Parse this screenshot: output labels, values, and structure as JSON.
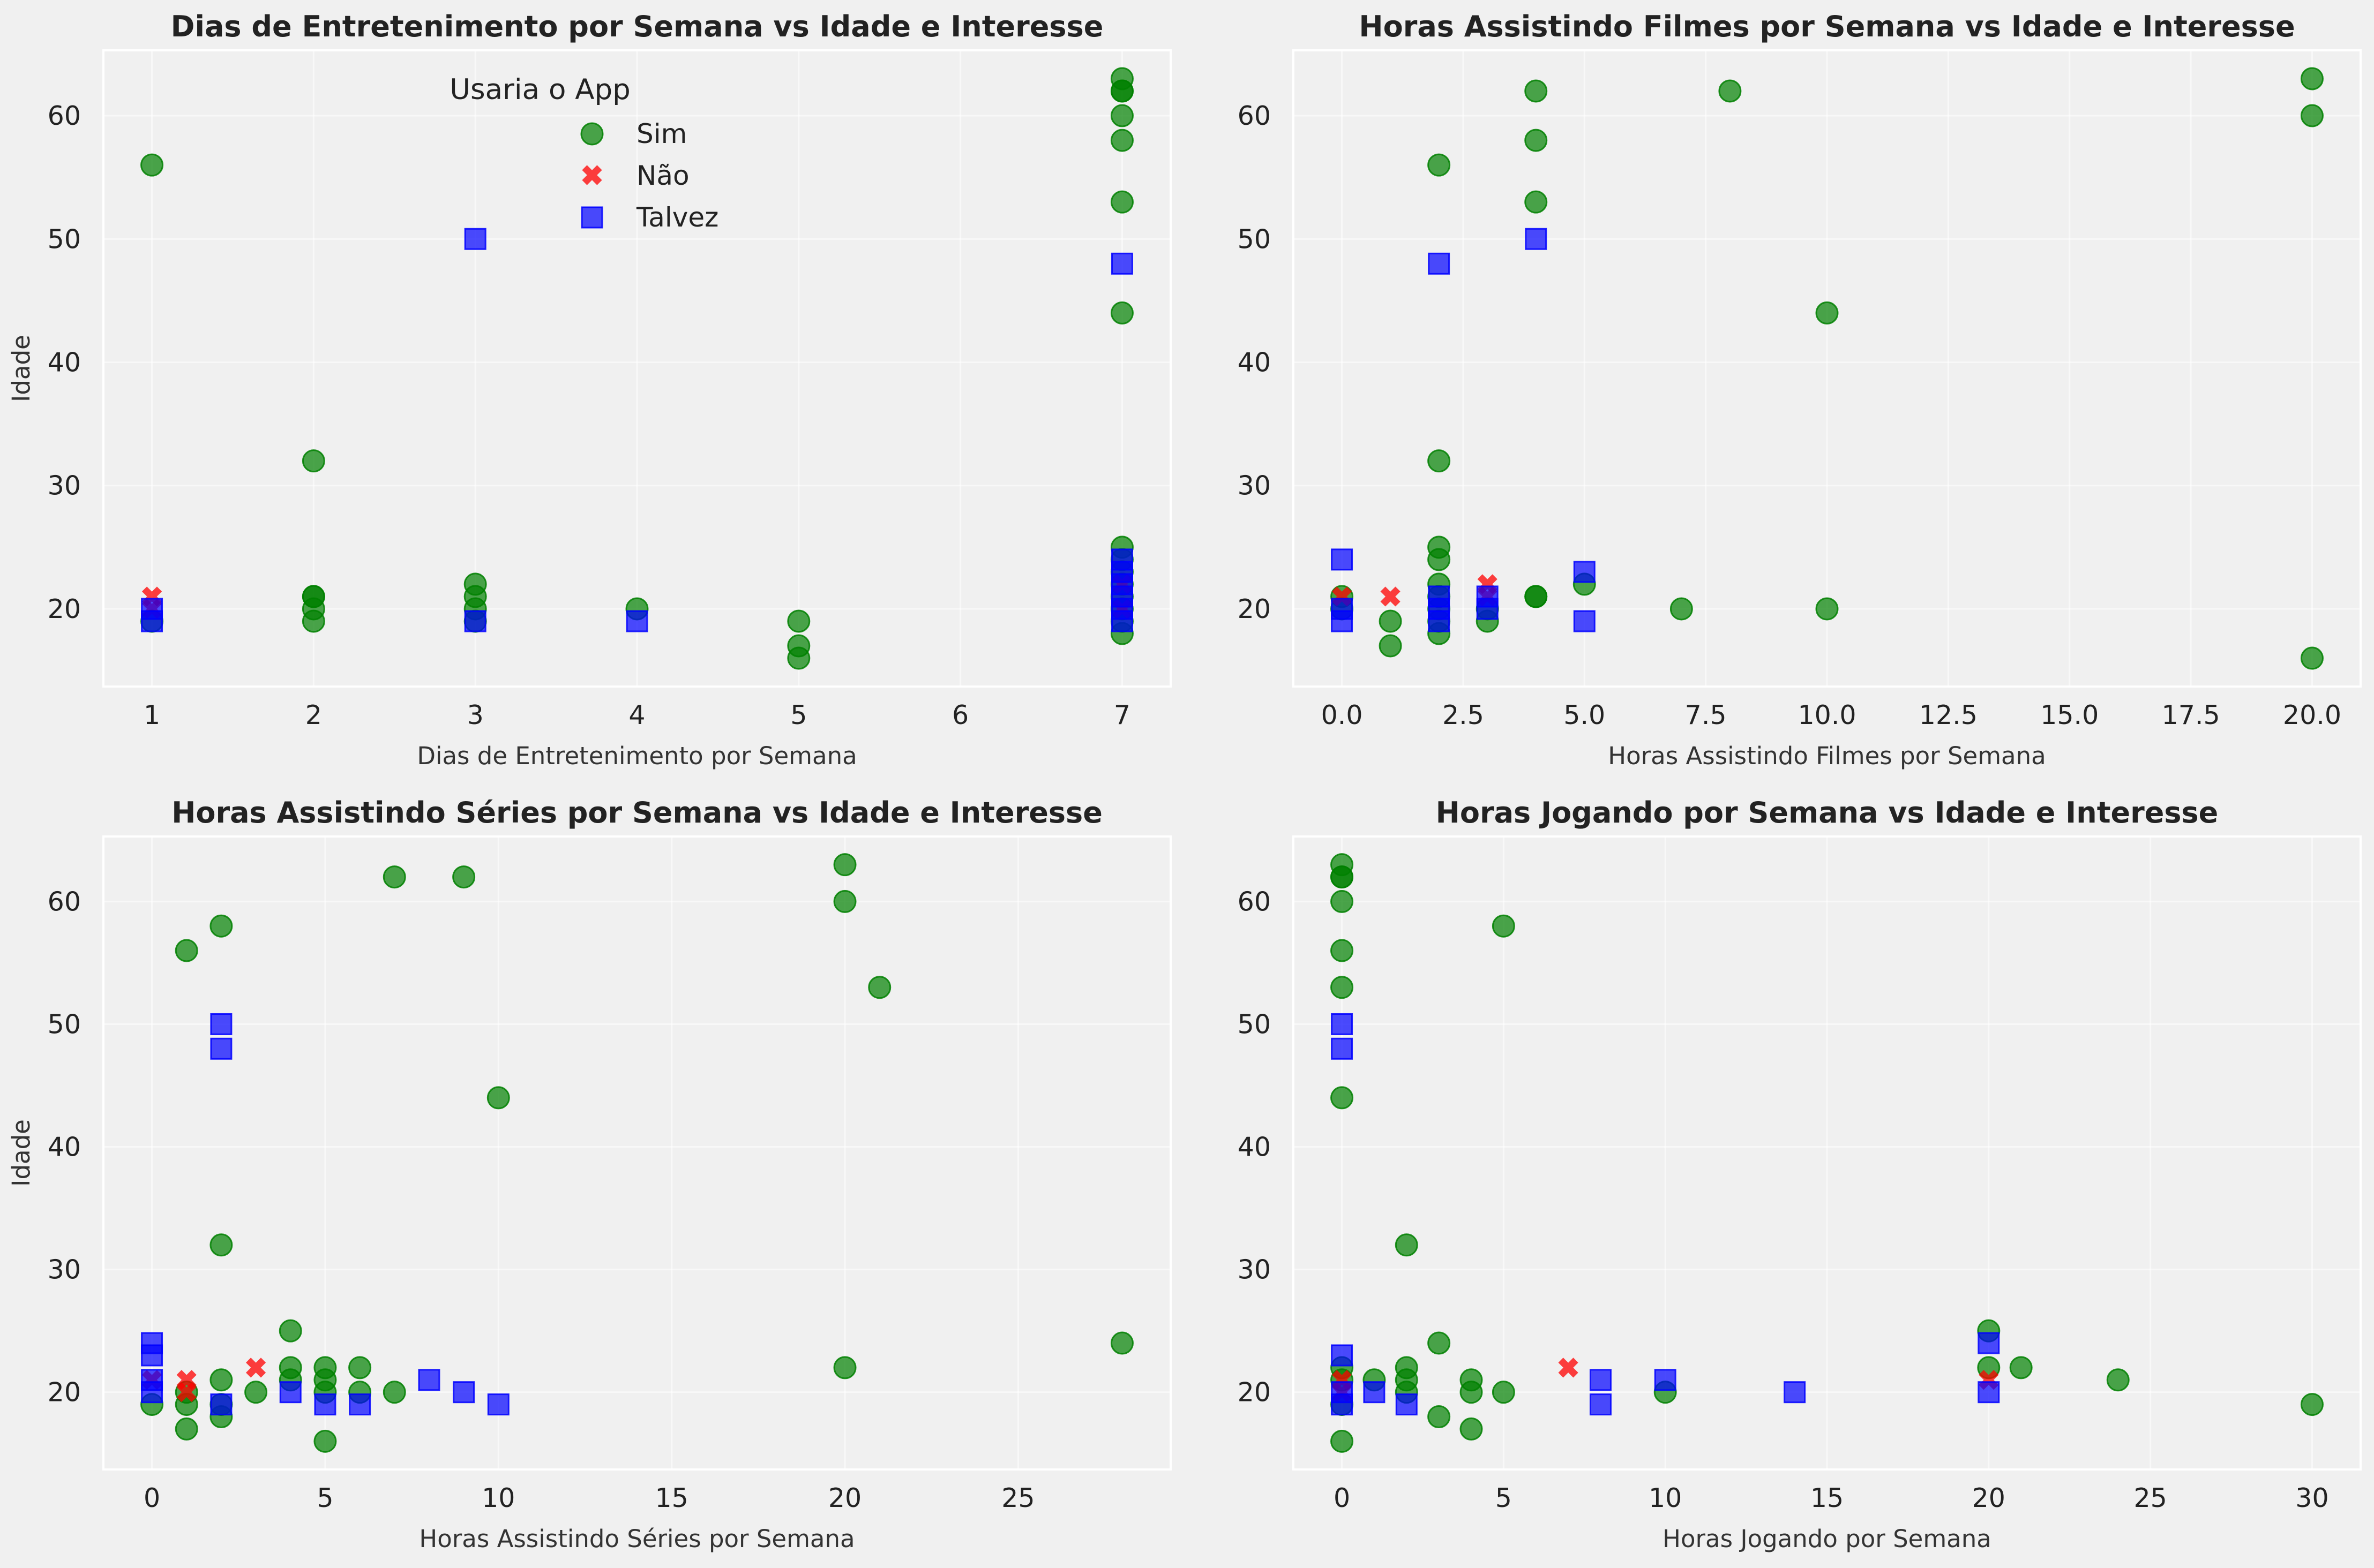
{
  "legend": {
    "title": "Usaria o App",
    "entries": [
      {
        "name": "Sim",
        "color": "#008000",
        "marker": "circle"
      },
      {
        "name": "Não",
        "color": "#ff0000",
        "marker": "x"
      },
      {
        "name": "Talvez",
        "color": "#0000ff",
        "marker": "square"
      }
    ]
  },
  "chart_data": [
    {
      "type": "scatter",
      "title": "Dias de Entretenimento por Semana vs Idade e Interesse",
      "xlabel": "Dias de Entretenimento por Semana",
      "ylabel": "Idade",
      "xlim": [
        0.7,
        7.3
      ],
      "ylim": [
        13.7,
        65.3
      ],
      "xticks": [
        1,
        2,
        3,
        4,
        5,
        6,
        7
      ],
      "xtick_labels": [
        "1",
        "2",
        "3",
        "4",
        "5",
        "6",
        "7"
      ],
      "yticks": [
        20,
        30,
        40,
        50,
        60
      ],
      "grid": true,
      "legend_position": "upper-center",
      "series": [
        {
          "name": "Sim",
          "points": [
            [
              1,
              56
            ],
            [
              1,
              19
            ],
            [
              2,
              32
            ],
            [
              2,
              21
            ],
            [
              2,
              20
            ],
            [
              2,
              19
            ],
            [
              2,
              21
            ],
            [
              3,
              22
            ],
            [
              3,
              21
            ],
            [
              3,
              20
            ],
            [
              3,
              19
            ],
            [
              4,
              20
            ],
            [
              5,
              19
            ],
            [
              5,
              17
            ],
            [
              5,
              16
            ],
            [
              7,
              63
            ],
            [
              7,
              62
            ],
            [
              7,
              62
            ],
            [
              7,
              60
            ],
            [
              7,
              58
            ],
            [
              7,
              53
            ],
            [
              7,
              44
            ],
            [
              7,
              25
            ],
            [
              7,
              24
            ],
            [
              7,
              23
            ],
            [
              7,
              22
            ],
            [
              7,
              21
            ],
            [
              7,
              20
            ],
            [
              7,
              19
            ],
            [
              7,
              18
            ]
          ]
        },
        {
          "name": "Não",
          "points": [
            [
              1,
              21
            ],
            [
              1,
              20
            ],
            [
              7,
              22
            ],
            [
              7,
              20
            ]
          ]
        },
        {
          "name": "Talvez",
          "points": [
            [
              1,
              20
            ],
            [
              1,
              19
            ],
            [
              3,
              50
            ],
            [
              3,
              19
            ],
            [
              4,
              19
            ],
            [
              7,
              48
            ],
            [
              7,
              24
            ],
            [
              7,
              23
            ],
            [
              7,
              22
            ],
            [
              7,
              21
            ],
            [
              7,
              20
            ],
            [
              7,
              19
            ]
          ]
        }
      ]
    },
    {
      "type": "scatter",
      "title": "Horas Assistindo Filmes por Semana vs Idade e Interesse",
      "xlabel": "Horas Assistindo Filmes por Semana",
      "ylabel": "Idade",
      "xlim": [
        -1,
        21
      ],
      "ylim": [
        13.7,
        65.3
      ],
      "xticks": [
        0,
        2.5,
        5,
        7.5,
        10,
        12.5,
        15,
        17.5,
        20
      ],
      "xtick_labels": [
        "0.0",
        "2.5",
        "5.0",
        "7.5",
        "10.0",
        "12.5",
        "15.0",
        "17.5",
        "20.0"
      ],
      "yticks": [
        20,
        30,
        40,
        50,
        60
      ],
      "grid": true,
      "series": [
        {
          "name": "Sim",
          "points": [
            [
              20,
              63
            ],
            [
              20,
              60
            ],
            [
              4,
              62
            ],
            [
              8,
              62
            ],
            [
              4,
              58
            ],
            [
              2,
              56
            ],
            [
              4,
              53
            ],
            [
              10,
              44
            ],
            [
              2,
              32
            ],
            [
              2,
              25
            ],
            [
              2,
              24
            ],
            [
              2,
              22
            ],
            [
              2,
              21
            ],
            [
              2,
              20
            ],
            [
              2,
              19
            ],
            [
              2,
              18
            ],
            [
              1,
              19
            ],
            [
              1,
              17
            ],
            [
              3,
              20
            ],
            [
              3,
              19
            ],
            [
              4,
              21
            ],
            [
              4,
              21
            ],
            [
              5,
              22
            ],
            [
              7,
              20
            ],
            [
              10,
              20
            ],
            [
              20,
              16
            ],
            [
              0,
              21
            ],
            [
              0,
              20
            ]
          ]
        },
        {
          "name": "Não",
          "points": [
            [
              0,
              21
            ],
            [
              1,
              21
            ],
            [
              3,
              22
            ],
            [
              3,
              21
            ]
          ]
        },
        {
          "name": "Talvez",
          "points": [
            [
              0,
              24
            ],
            [
              0,
              20
            ],
            [
              0,
              19
            ],
            [
              2,
              48
            ],
            [
              2,
              21
            ],
            [
              2,
              20
            ],
            [
              2,
              19
            ],
            [
              3,
              21
            ],
            [
              3,
              20
            ],
            [
              4,
              50
            ],
            [
              5,
              23
            ],
            [
              5,
              19
            ]
          ]
        }
      ]
    },
    {
      "type": "scatter",
      "title": "Horas Assistindo Séries por Semana vs Idade e Interesse",
      "xlabel": "Horas Assistindo Séries por Semana",
      "ylabel": "Idade",
      "xlim": [
        -1.4,
        29.4
      ],
      "ylim": [
        13.7,
        65.3
      ],
      "xticks": [
        0,
        5,
        10,
        15,
        20,
        25
      ],
      "xtick_labels": [
        "0",
        "5",
        "10",
        "15",
        "20",
        "25"
      ],
      "yticks": [
        20,
        30,
        40,
        50,
        60
      ],
      "grid": true,
      "series": [
        {
          "name": "Sim",
          "points": [
            [
              20,
              63
            ],
            [
              7,
              62
            ],
            [
              9,
              62
            ],
            [
              20,
              60
            ],
            [
              2,
              58
            ],
            [
              1,
              56
            ],
            [
              21,
              53
            ],
            [
              10,
              44
            ],
            [
              2,
              32
            ],
            [
              4,
              25
            ],
            [
              28,
              24
            ],
            [
              20,
              22
            ],
            [
              4,
              22
            ],
            [
              5,
              22
            ],
            [
              6,
              22
            ],
            [
              2,
              21
            ],
            [
              4,
              21
            ],
            [
              5,
              21
            ],
            [
              0,
              19
            ],
            [
              1,
              20
            ],
            [
              1,
              19
            ],
            [
              1,
              17
            ],
            [
              2,
              19
            ],
            [
              2,
              18
            ],
            [
              3,
              20
            ],
            [
              5,
              20
            ],
            [
              6,
              20
            ],
            [
              7,
              20
            ],
            [
              5,
              16
            ]
          ]
        },
        {
          "name": "Não",
          "points": [
            [
              1,
              21
            ],
            [
              1,
              20
            ],
            [
              3,
              22
            ],
            [
              0,
              21
            ]
          ]
        },
        {
          "name": "Talvez",
          "points": [
            [
              2,
              50
            ],
            [
              2,
              48
            ],
            [
              0,
              24
            ],
            [
              0,
              23
            ],
            [
              0,
              21
            ],
            [
              0,
              20
            ],
            [
              2,
              19
            ],
            [
              4,
              20
            ],
            [
              5,
              19
            ],
            [
              6,
              19
            ],
            [
              8,
              21
            ],
            [
              9,
              20
            ],
            [
              10,
              19
            ]
          ]
        }
      ]
    },
    {
      "type": "scatter",
      "title": "Horas Jogando por Semana vs Idade e Interesse",
      "xlabel": "Horas Jogando por Semana",
      "ylabel": "Idade",
      "xlim": [
        -1.5,
        31.5
      ],
      "ylim": [
        13.7,
        65.3
      ],
      "xticks": [
        0,
        5,
        10,
        15,
        20,
        25,
        30
      ],
      "xtick_labels": [
        "0",
        "5",
        "10",
        "15",
        "20",
        "25",
        "30"
      ],
      "yticks": [
        20,
        30,
        40,
        50,
        60
      ],
      "grid": true,
      "series": [
        {
          "name": "Sim",
          "points": [
            [
              0,
              63
            ],
            [
              0,
              62
            ],
            [
              0,
              62
            ],
            [
              0,
              60
            ],
            [
              0,
              56
            ],
            [
              0,
              53
            ],
            [
              0,
              44
            ],
            [
              0,
              22
            ],
            [
              0,
              21
            ],
            [
              0,
              19
            ],
            [
              0,
              16
            ],
            [
              5,
              58
            ],
            [
              2,
              32
            ],
            [
              1,
              21
            ],
            [
              2,
              22
            ],
            [
              2,
              21
            ],
            [
              2,
              20
            ],
            [
              3,
              24
            ],
            [
              3,
              18
            ],
            [
              4,
              21
            ],
            [
              4,
              20
            ],
            [
              4,
              17
            ],
            [
              5,
              20
            ],
            [
              10,
              20
            ],
            [
              20,
              25
            ],
            [
              20,
              22
            ],
            [
              21,
              22
            ],
            [
              24,
              21
            ],
            [
              30,
              19
            ]
          ]
        },
        {
          "name": "Não",
          "points": [
            [
              0,
              21
            ],
            [
              0,
              20
            ],
            [
              7,
              22
            ],
            [
              20,
              21
            ]
          ]
        },
        {
          "name": "Talvez",
          "points": [
            [
              0,
              50
            ],
            [
              0,
              48
            ],
            [
              0,
              23
            ],
            [
              0,
              20
            ],
            [
              0,
              19
            ],
            [
              1,
              20
            ],
            [
              2,
              19
            ],
            [
              8,
              21
            ],
            [
              8,
              19
            ],
            [
              10,
              21
            ],
            [
              14,
              20
            ],
            [
              20,
              24
            ],
            [
              20,
              20
            ]
          ]
        }
      ]
    }
  ]
}
